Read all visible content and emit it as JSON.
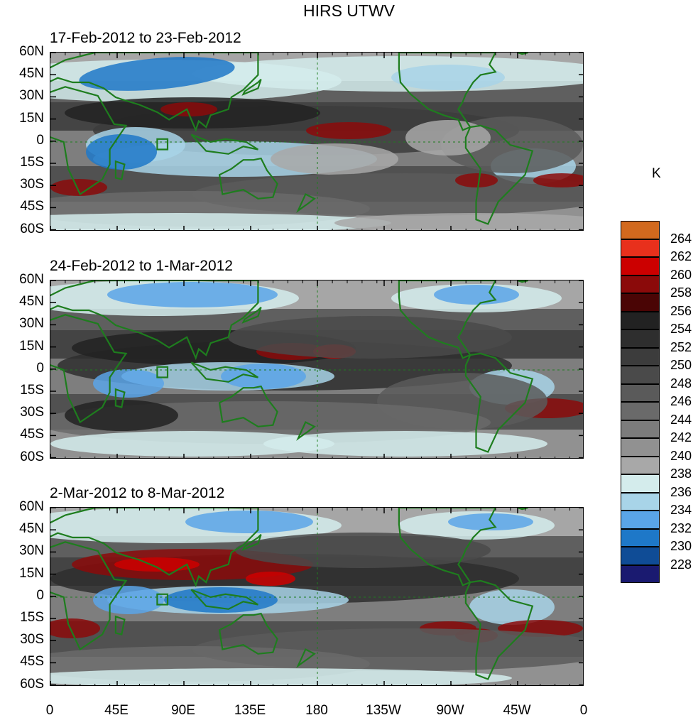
{
  "title": "HIRS UTWV",
  "panels": [
    {
      "subtitle": "17-Feb-2012 to 23-Feb-2012"
    },
    {
      "subtitle": "24-Feb-2012 to 1-Mar-2012"
    },
    {
      "subtitle": "2-Mar-2012 to 8-Mar-2012"
    }
  ],
  "y_ticks": [
    "60N",
    "45N",
    "30N",
    "15N",
    "0",
    "15S",
    "30S",
    "45S",
    "60S"
  ],
  "x_ticks": [
    "0",
    "45E",
    "90E",
    "135E",
    "180",
    "135W",
    "90W",
    "45W",
    "0"
  ],
  "colorbar": {
    "unit": "K",
    "labels": [
      "264",
      "262",
      "260",
      "258",
      "256",
      "254",
      "252",
      "250",
      "248",
      "246",
      "244",
      "242",
      "240",
      "238",
      "236",
      "234",
      "232",
      "230",
      "228"
    ],
    "colors": [
      "#d2691e",
      "#e8301c",
      "#cc0000",
      "#8b0a0a",
      "#4a0505",
      "#222222",
      "#2e2e2e",
      "#3c3c3c",
      "#4a4a4a",
      "#5a5a5a",
      "#6a6a6a",
      "#7c7c7c",
      "#919191",
      "#a8a8a8",
      "#d4ecec",
      "#a8d4e8",
      "#5aa5e8",
      "#1e78c8",
      "#0f4c96",
      "#1a1a70"
    ]
  },
  "map_colors": {
    "coast": "#1e7d1e",
    "ocean_base": "#8c8c8c"
  }
}
